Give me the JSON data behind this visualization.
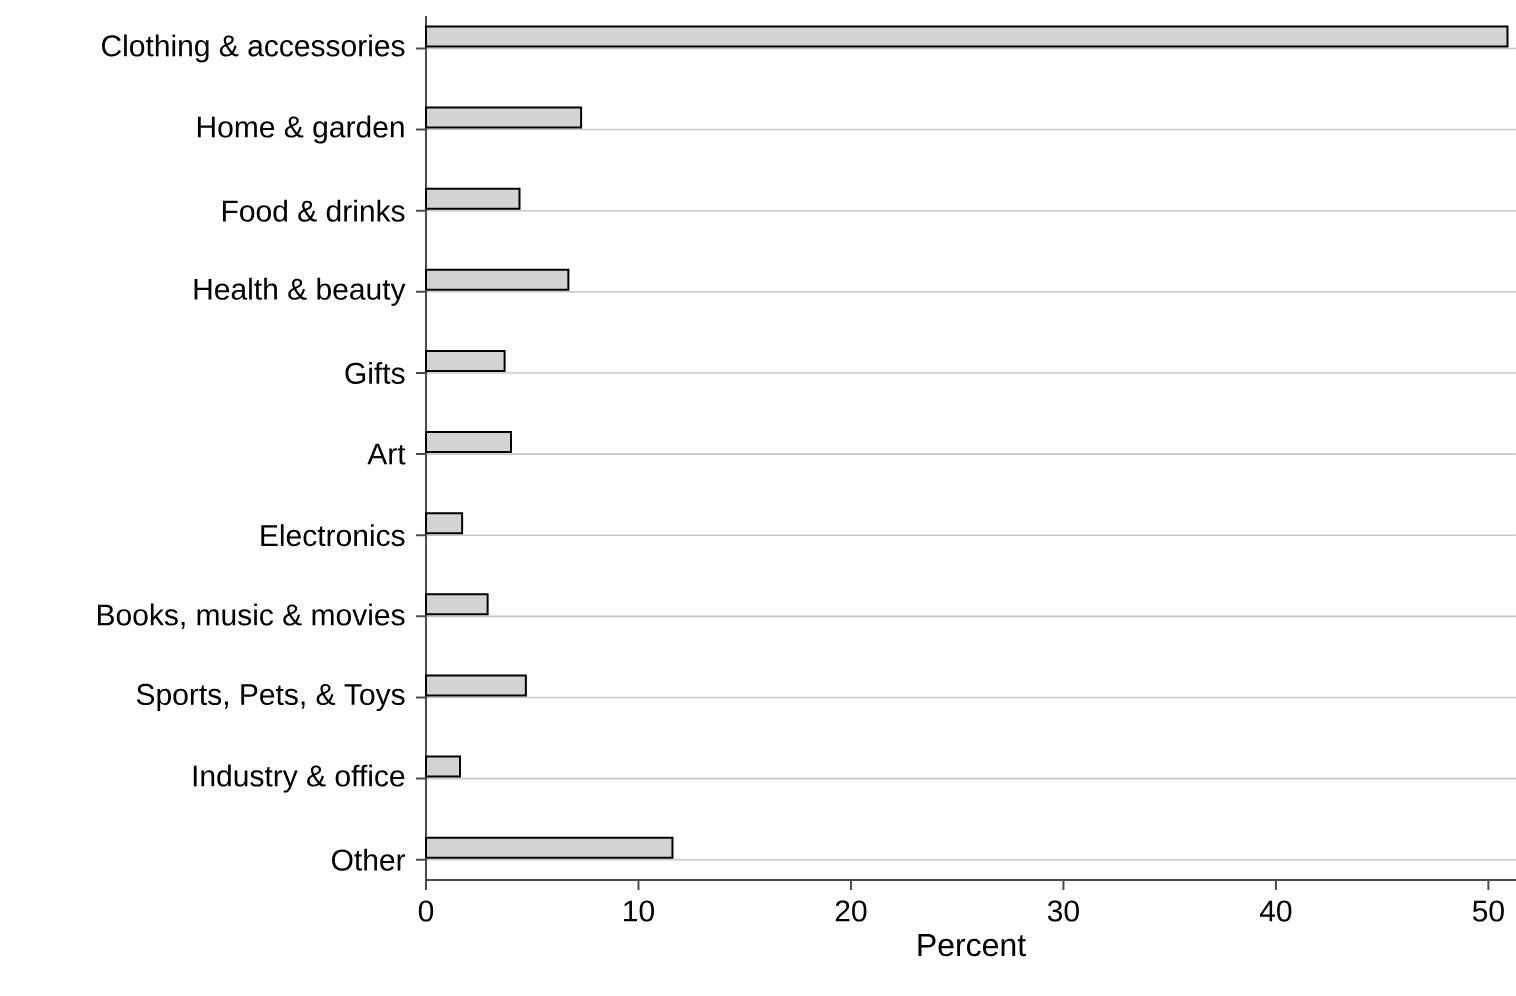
{
  "chart_data": {
    "type": "bar",
    "orientation": "horizontal",
    "xlabel": "Percent",
    "categories": [
      "Clothing & accessories",
      "Home & garden",
      "Food & drinks",
      "Health & beauty",
      "Gifts",
      "Art",
      "Electronics",
      "Books, music & movies",
      "Sports, Pets, & Toys",
      "Industry & office",
      "Other"
    ],
    "values": [
      50.9,
      7.3,
      4.4,
      6.7,
      3.7,
      4.0,
      1.7,
      2.9,
      4.7,
      1.6,
      11.6
    ],
    "color": "#d3d3d3",
    "xlim": [
      0,
      51.3
    ],
    "xticks": [
      0,
      10,
      20,
      30,
      40,
      50
    ],
    "grid": "y"
  }
}
